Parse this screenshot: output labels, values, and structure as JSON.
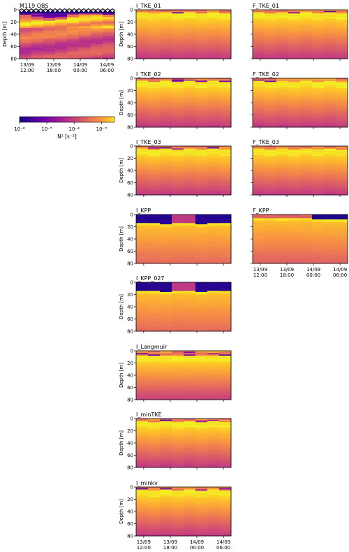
{
  "chart_data": {
    "type": "heatmap",
    "ylabel": "Depth [m]",
    "ylim": [
      80,
      0
    ],
    "y_ticks": [
      0,
      20,
      40,
      60,
      80
    ],
    "x_ticks": [
      "13/09\n12:00",
      "13/09\n18:00",
      "14/09\n00:00",
      "14/09\n06:00"
    ],
    "colorbar": {
      "label": "N² [s⁻²]",
      "scale": "log",
      "range": [
        1e-06,
        0.003
      ],
      "ticks": [
        "10⁻⁶",
        "10⁻⁵",
        "10⁻⁴",
        "10⁻³"
      ],
      "colormap": "plasma"
    },
    "panels": [
      {
        "title": "M119 OBS",
        "col": 0,
        "row": 0,
        "kind": "obs",
        "y_tick_labels": true,
        "x_tick_labels": true
      },
      {
        "title": "I_TKE_01",
        "col": 1,
        "row": 0,
        "kind": "tke",
        "y_tick_labels": true,
        "x_tick_labels": false
      },
      {
        "title": "F_TKE_01",
        "col": 2,
        "row": 0,
        "kind": "tke",
        "y_tick_labels": false,
        "x_tick_labels": false
      },
      {
        "title": "I_TKE_02",
        "col": 1,
        "row": 1,
        "kind": "tke",
        "y_tick_labels": true,
        "x_tick_labels": false
      },
      {
        "title": "F_TKE_02",
        "col": 2,
        "row": 1,
        "kind": "tke",
        "y_tick_labels": false,
        "x_tick_labels": false
      },
      {
        "title": "I_TKE_03",
        "col": 1,
        "row": 2,
        "kind": "tke",
        "y_tick_labels": true,
        "x_tick_labels": false
      },
      {
        "title": "F_TKE_03",
        "col": 2,
        "row": 2,
        "kind": "tke",
        "y_tick_labels": false,
        "x_tick_labels": false
      },
      {
        "title": "I_KPP",
        "col": 1,
        "row": 3,
        "kind": "kpp",
        "y_tick_labels": true,
        "x_tick_labels": false
      },
      {
        "title": "F_KPP",
        "col": 2,
        "row": 3,
        "kind": "kpp2",
        "y_tick_labels": false,
        "x_tick_labels": true
      },
      {
        "title": "I_KPP_027",
        "col": 1,
        "row": 4,
        "kind": "kpp",
        "y_tick_labels": true,
        "x_tick_labels": false
      },
      {
        "title": "I_Langmuir",
        "col": 1,
        "row": 5,
        "kind": "lang",
        "y_tick_labels": true,
        "x_tick_labels": false
      },
      {
        "title": "I_minTKE",
        "col": 1,
        "row": 6,
        "kind": "tke",
        "y_tick_labels": true,
        "x_tick_labels": false
      },
      {
        "title": "I_minkv",
        "col": 1,
        "row": 7,
        "kind": "tke",
        "y_tick_labels": true,
        "x_tick_labels": true
      }
    ]
  }
}
